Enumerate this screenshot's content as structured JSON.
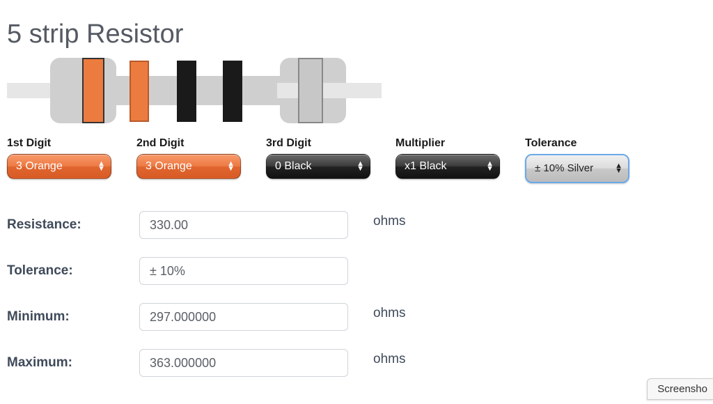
{
  "title": "5 strip Resistor",
  "band_colors": {
    "b1": "#ec7b3f",
    "b2": "#ec7b3f",
    "b3": "#1a1a1a",
    "b4": "#1a1a1a",
    "b5": "#c7c7c7"
  },
  "selectors": [
    {
      "label": "1st Digit",
      "value": "3 Orange",
      "style": "orange"
    },
    {
      "label": "2nd Digit",
      "value": "3 Orange",
      "style": "orange"
    },
    {
      "label": "3rd Digit",
      "value": "0 Black",
      "style": "black"
    },
    {
      "label": "Multiplier",
      "value": "x1 Black",
      "style": "black"
    },
    {
      "label": "Tolerance",
      "value": "± 10% Silver",
      "style": "silver"
    }
  ],
  "results": [
    {
      "label": "Resistance:",
      "value": "330.00",
      "unit": "ohms"
    },
    {
      "label": "Tolerance:",
      "value": "± 10%",
      "unit": ""
    },
    {
      "label": "Minimum:",
      "value": "297.000000",
      "unit": "ohms"
    },
    {
      "label": "Maximum:",
      "value": "363.000000",
      "unit": "ohms"
    }
  ],
  "screenshot_button": "Screensho"
}
